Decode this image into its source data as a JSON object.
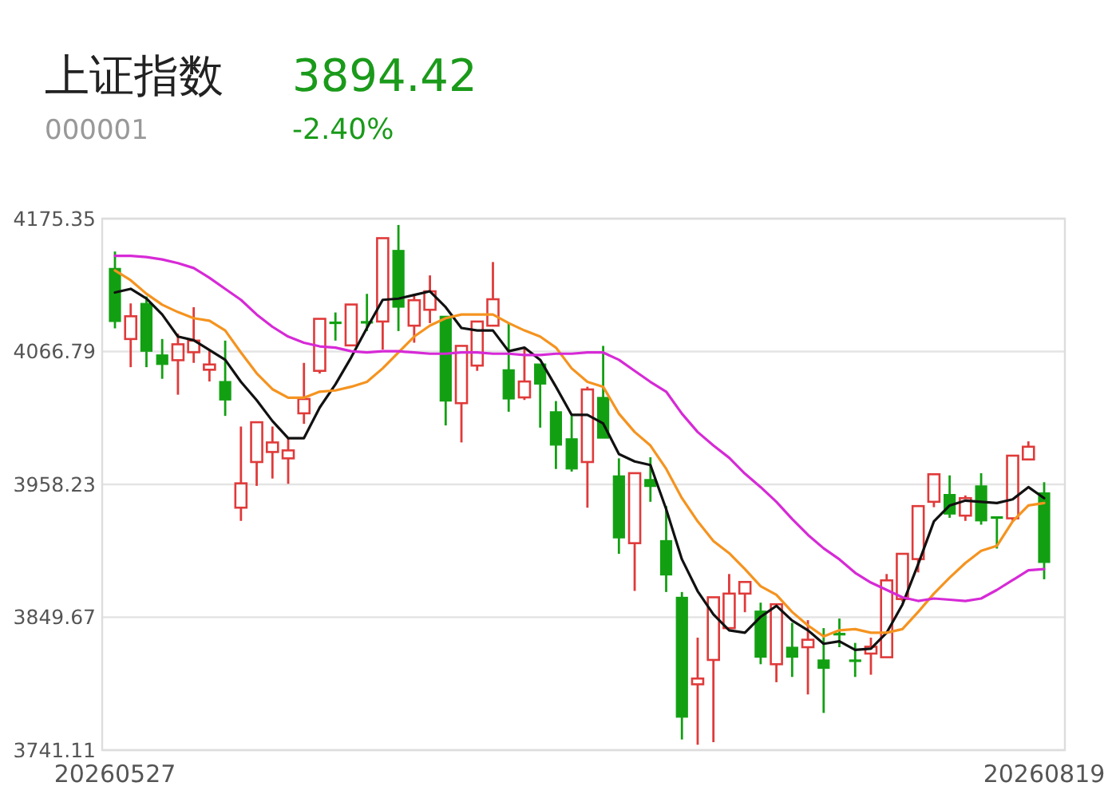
{
  "chart_data": {
    "type": "candlestick",
    "title": "上证指数",
    "subtitle": "000001",
    "annotations": [
      "3894.42",
      "-2.40%"
    ],
    "categories": [
      "20260527",
      null,
      null,
      null,
      null,
      null,
      null,
      null,
      null,
      null,
      null,
      null,
      null,
      null,
      null,
      null,
      null,
      null,
      null,
      null,
      null,
      null,
      null,
      null,
      null,
      null,
      null,
      null,
      null,
      null,
      null,
      null,
      null,
      null,
      null,
      null,
      null,
      null,
      null,
      null,
      null,
      null,
      null,
      null,
      null,
      null,
      null,
      null,
      null,
      null,
      null,
      null,
      null,
      null,
      null,
      null,
      null,
      null,
      null,
      "20260819"
    ],
    "ohlc": [
      [
        4134.7,
        4148.5,
        4085.7,
        4091.3
      ],
      [
        4077.0,
        4106.1,
        4054.0,
        4095.6
      ],
      [
        4106.1,
        4111.7,
        4054.0,
        4067.0
      ],
      [
        4064.0,
        4077.0,
        4044.5,
        4056.2
      ],
      [
        4059.7,
        4081.4,
        4031.5,
        4072.7
      ],
      [
        4066.2,
        4103.0,
        4057.5,
        4075.7
      ],
      [
        4051.9,
        4068.4,
        4042.3,
        4056.2
      ],
      [
        4042.3,
        4075.7,
        4014.2,
        4027.2
      ],
      [
        3939.2,
        4005.5,
        3928.4,
        3959.1
      ],
      [
        3976.5,
        4010.7,
        3957.0,
        4009.0
      ],
      [
        3984.7,
        4005.5,
        3963.0,
        3992.5
      ],
      [
        3979.5,
        3996.0,
        3958.7,
        3986.0
      ],
      [
        4016.3,
        4057.5,
        4007.7,
        4028.0
      ],
      [
        4051.0,
        4094.4,
        4048.8,
        4093.5
      ],
      [
        4090.9,
        4098.7,
        4075.7,
        4090.0
      ],
      [
        4071.8,
        4106.1,
        4070.5,
        4105.2
      ],
      [
        4091.3,
        4113.9,
        4083.5,
        4090.0
      ],
      [
        4091.3,
        4159.4,
        4068.4,
        4159.4
      ],
      [
        4149.4,
        4170.2,
        4083.5,
        4103.0
      ],
      [
        4087.9,
        4113.9,
        4074.0,
        4108.7
      ],
      [
        4100.9,
        4129.0,
        4090.0,
        4116.0
      ],
      [
        4095.6,
        4095.6,
        4006.4,
        4026.3
      ],
      [
        4024.6,
        4072.7,
        3992.5,
        4071.4
      ],
      [
        4055.3,
        4093.1,
        4051.0,
        4091.3
      ],
      [
        4087.9,
        4139.9,
        4087.0,
        4109.5
      ],
      [
        4051.9,
        4090.0,
        4017.6,
        4028.0
      ],
      [
        4029.3,
        4069.6,
        4027.2,
        4042.3
      ],
      [
        4056.6,
        4057.5,
        4004.6,
        4040.2
      ],
      [
        4017.6,
        4026.3,
        3970.8,
        3990.3
      ],
      [
        3995.5,
        4014.2,
        3968.7,
        3970.8
      ],
      [
        3976.5,
        4038.0,
        3939.2,
        4035.8
      ],
      [
        4029.3,
        4071.4,
        3994.7,
        3996.0
      ],
      [
        3965.2,
        3979.5,
        3901.5,
        3914.5
      ],
      [
        3910.2,
        3967.4,
        3871.2,
        3967.4
      ],
      [
        3962.2,
        3980.4,
        3944.0,
        3956.5
      ],
      [
        3912.3,
        3940.5,
        3870.3,
        3884.2
      ],
      [
        3866.0,
        3870.3,
        3749.8,
        3768.0
      ],
      [
        3794.9,
        3833.0,
        3745.5,
        3799.6
      ],
      [
        3814.8,
        3866.0,
        3747.6,
        3866.0
      ],
      [
        3840.8,
        3885.0,
        3839.9,
        3869.0
      ],
      [
        3869.0,
        3879.8,
        3853.8,
        3878.5
      ],
      [
        3854.7,
        3861.6,
        3811.3,
        3817.0
      ],
      [
        3811.3,
        3860.3,
        3796.6,
        3860.3
      ],
      [
        3825.2,
        3845.1,
        3800.9,
        3817.0
      ],
      [
        3825.2,
        3847.3,
        3786.6,
        3831.3
      ],
      [
        3814.8,
        3840.8,
        3771.5,
        3807.9
      ],
      [
        3836.5,
        3848.6,
        3825.2,
        3835.2
      ],
      [
        3814.8,
        3828.7,
        3800.9,
        3813.9
      ],
      [
        3820.0,
        3833.0,
        3802.7,
        3825.6
      ],
      [
        3817.0,
        3885.0,
        3817.0,
        3879.8
      ],
      [
        3864.6,
        3902.4,
        3862.5,
        3901.5
      ],
      [
        3897.2,
        3940.5,
        3886.3,
        3940.5
      ],
      [
        3944.0,
        3966.5,
        3939.6,
        3966.5
      ],
      [
        3950.0,
        3965.6,
        3930.9,
        3934.0
      ],
      [
        3932.7,
        3949.2,
        3928.4,
        3947.0
      ],
      [
        3957.0,
        3967.4,
        3925.3,
        3928.4
      ],
      [
        3931.8,
        3932.7,
        3905.8,
        3930.5
      ],
      [
        3930.5,
        3981.7,
        3927.5,
        3981.7
      ],
      [
        3978.6,
        3993.4,
        3977.3,
        3989.0
      ],
      [
        3951.3,
        3960.0,
        3880.7,
        3894.42
      ]
    ],
    "colors": [
      "#12a012",
      "#e03a3a",
      "#12a012",
      "#12a012",
      "#e03a3a",
      "#e03a3a",
      "#e03a3a",
      "#12a012",
      "#e03a3a",
      "#e03a3a",
      "#e03a3a",
      "#e03a3a",
      "#e03a3a",
      "#e03a3a",
      "#12a012",
      "#e03a3a",
      "#12a012",
      "#e03a3a",
      "#12a012",
      "#e03a3a",
      "#e03a3a",
      "#12a012",
      "#e03a3a",
      "#e03a3a",
      "#e03a3a",
      "#12a012",
      "#e03a3a",
      "#12a012",
      "#12a012",
      "#12a012",
      "#e03a3a",
      "#12a012",
      "#12a012",
      "#e03a3a",
      "#12a012",
      "#12a012",
      "#12a012",
      "#e03a3a",
      "#e03a3a",
      "#e03a3a",
      "#e03a3a",
      "#12a012",
      "#e03a3a",
      "#12a012",
      "#e03a3a",
      "#12a012",
      "#12a012",
      "#12a012",
      "#e03a3a",
      "#e03a3a",
      "#e03a3a",
      "#e03a3a",
      "#e03a3a",
      "#12a012",
      "#e03a3a",
      "#12a012",
      "#12a012",
      "#e03a3a",
      "#e03a3a",
      "#12a012"
    ],
    "series": [
      {
        "type": "line",
        "color": "#111111",
        "values": [
          4115,
          4118,
          4110,
          4097,
          4079,
          4076,
          4068,
          4060,
          4042,
          4027,
          4010,
          3996,
          3996,
          4021,
          4040,
          4062,
          4086,
          4109,
          4110,
          4113,
          4116,
          4103,
          4086,
          4084,
          4084,
          4067,
          4070,
          4060,
          4038,
          4015,
          4015,
          4008,
          3983,
          3977,
          3974,
          3938,
          3897,
          3871,
          3852,
          3839,
          3837,
          3850,
          3859,
          3847,
          3839,
          3828,
          3830,
          3823,
          3824,
          3837,
          3860,
          3893,
          3928,
          3941,
          3945,
          3944,
          3943,
          3946,
          3956,
          3947
        ]
      },
      {
        "type": "line",
        "color": "#f5931f",
        "values": [
          4133,
          4125,
          4114,
          4105,
          4099,
          4094,
          4092,
          4084,
          4066,
          4049,
          4036,
          4029,
          4029,
          4034,
          4035,
          4038,
          4042,
          4053,
          4066,
          4079,
          4088,
          4094,
          4097,
          4097,
          4097,
          4090,
          4084,
          4079,
          4070,
          4053,
          4042,
          4038,
          4016,
          4001,
          3990,
          3971,
          3947,
          3928,
          3912,
          3902,
          3889,
          3875,
          3868,
          3854,
          3843,
          3834,
          3839,
          3840,
          3837,
          3837,
          3840,
          3854,
          3869,
          3882,
          3894,
          3904,
          3908,
          3928,
          3941,
          3943
        ]
      },
      {
        "type": "line",
        "color": "#d62ad6",
        "values": [
          4145,
          4145,
          4144,
          4142,
          4139,
          4135,
          4127,
          4118,
          4109,
          4097,
          4087,
          4079,
          4074,
          4071,
          4070,
          4067,
          4066,
          4067,
          4067,
          4066,
          4065,
          4065,
          4066,
          4066,
          4065,
          4065,
          4064,
          4064,
          4065,
          4065,
          4066,
          4066,
          4060,
          4051,
          4042,
          4034,
          4016,
          4001,
          3990,
          3980,
          3967,
          3956,
          3944,
          3930,
          3917,
          3906,
          3897,
          3886,
          3878,
          3872,
          3866,
          3863,
          3865,
          3864,
          3863,
          3865,
          3872,
          3880,
          3888,
          3889
        ]
      }
    ],
    "ylim": [
      3741.11,
      4175.35
    ],
    "yticks": [
      3741.11,
      3849.67,
      3958.23,
      4066.79,
      4175.35
    ],
    "grid": "y"
  }
}
